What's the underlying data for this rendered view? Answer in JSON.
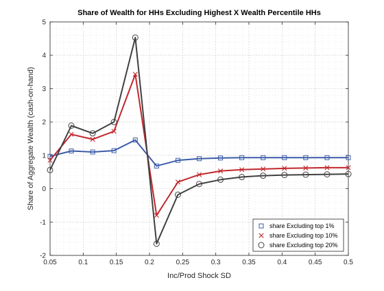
{
  "chart_data": {
    "type": "line",
    "title": "Share of Wealth for HHs Excluding Highest X Wealth Percentile HHs",
    "xlabel": "Inc/Prod Shock SD",
    "ylabel": "Share of Aggregate Wealth (cash-on-hand)",
    "xlim": [
      0.05,
      0.5
    ],
    "ylim": [
      -2,
      5
    ],
    "x_ticks": [
      "0.05",
      "0.1",
      "0.15",
      "0.2",
      "0.25",
      "0.3",
      "0.35",
      "0.4",
      "0.45",
      "0.5"
    ],
    "x_tick_values": [
      0.05,
      0.1,
      0.15,
      0.2,
      0.25,
      0.3,
      0.35,
      0.4,
      0.45,
      0.5
    ],
    "y_ticks": [
      "-2",
      "-1",
      "0",
      "1",
      "2",
      "3",
      "4",
      "5"
    ],
    "y_tick_values": [
      -2,
      -1,
      0,
      1,
      2,
      3,
      4,
      5
    ],
    "grid": true,
    "minor_grid": true,
    "legend_position": "bottom-right",
    "x": [
      0.05,
      0.0821,
      0.1143,
      0.1464,
      0.1786,
      0.2107,
      0.2429,
      0.275,
      0.3071,
      0.3393,
      0.3714,
      0.4036,
      0.4357,
      0.4679,
      0.5
    ],
    "series": [
      {
        "name": "share Excluding top 1%",
        "marker": "square",
        "color": "#3a5ba8",
        "values": [
          0.97,
          1.13,
          1.1,
          1.14,
          1.46,
          0.68,
          0.85,
          0.9,
          0.92,
          0.93,
          0.93,
          0.93,
          0.93,
          0.93,
          0.93
        ]
      },
      {
        "name": "share Excluding top 10%",
        "marker": "x",
        "color": "#c1272d",
        "values": [
          0.85,
          1.63,
          1.48,
          1.72,
          3.43,
          -0.8,
          0.2,
          0.42,
          0.53,
          0.57,
          0.59,
          0.61,
          0.62,
          0.63,
          0.63
        ]
      },
      {
        "name": "share Excluding top 20%",
        "marker": "circle",
        "color": "#404040",
        "values": [
          0.56,
          1.89,
          1.66,
          2.0,
          4.53,
          -1.65,
          -0.18,
          0.14,
          0.27,
          0.35,
          0.39,
          0.41,
          0.42,
          0.43,
          0.44
        ]
      }
    ]
  }
}
